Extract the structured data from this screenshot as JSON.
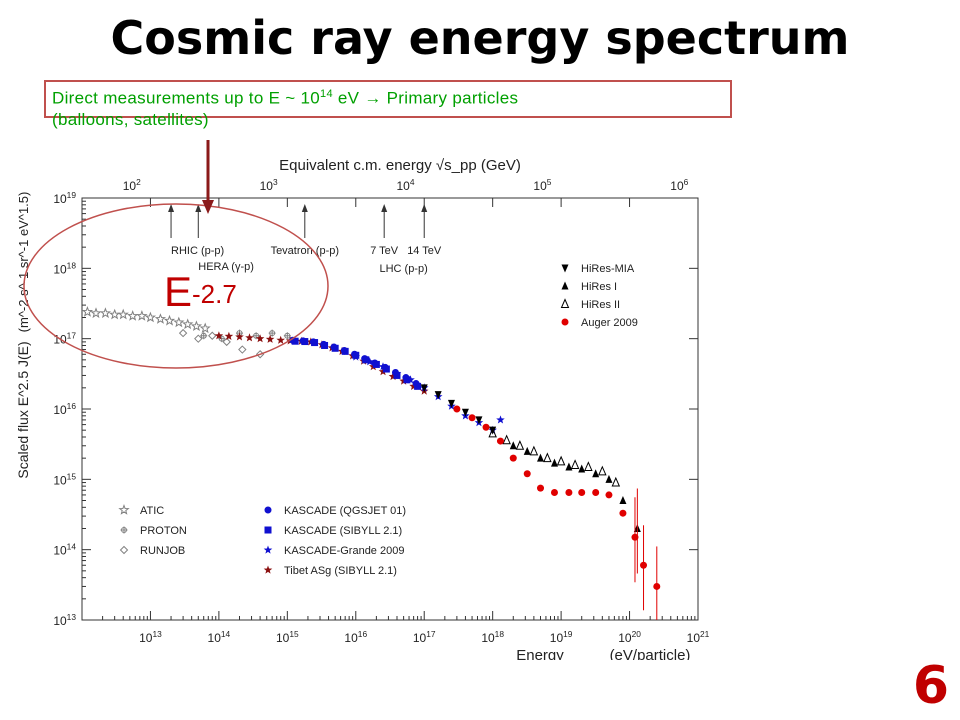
{
  "title": "Cosmic ray energy spectrum",
  "page_number": "6",
  "callout": {
    "line1_prefix": "Direct measurements up to E ~ 10",
    "line1_exp": "14",
    "line1_suffix": " eV  → Primary particles",
    "line2": "(balloons, satellites)"
  },
  "annotation": {
    "base": "E",
    "exponent": "-2.7"
  },
  "colors": {
    "title": "#000000",
    "callout_text": "#00a000",
    "callout_border": "#c0504d",
    "annotation": "#c00000",
    "arrow": "#8b1a1a"
  },
  "chart_data": {
    "type": "scatter",
    "xlabel": "Energy",
    "xunit": "(eV/particle)",
    "ylabel": "Scaled flux  E^2.5 J(E)",
    "yunit": "(m^-2 s^-1 sr^-1 eV^1.5)",
    "x_scale": "log",
    "y_scale": "log",
    "xlim": [
      1000000000000.0,
      1e+21
    ],
    "ylim": [
      10000000000000.0,
      1e+19
    ],
    "x_ticks": [
      "10^13",
      "10^14",
      "10^15",
      "10^16",
      "10^17",
      "10^18",
      "10^19",
      "10^20",
      "10^21"
    ],
    "y_ticks": [
      "10^13",
      "10^14",
      "10^15",
      "10^16",
      "10^17",
      "10^18",
      "10^19"
    ],
    "top_axis": {
      "label": "Equivalent c.m. energy √s_pp  (GeV)",
      "ticks": [
        "10^2",
        "10^3",
        "10^4",
        "10^5",
        "10^6"
      ]
    },
    "accelerator_markers": [
      {
        "label": "RHIC (p-p)",
        "energy_ev": 20000000000000.0
      },
      {
        "label": "HERA (γ-p)",
        "energy_ev": 50000000000000.0
      },
      {
        "label": "Tevatron (p-p)",
        "energy_ev": 1800000000000000.0
      },
      {
        "label": "7 TeV",
        "energy_ev": 2.6e+16
      },
      {
        "label": "14 TeV",
        "energy_ev": 1e+17
      }
    ],
    "lhc_label": "LHC (p-p)",
    "legend_left": [
      {
        "name": "ATIC",
        "marker": "star-open",
        "color": "#808080"
      },
      {
        "name": "PROTON",
        "marker": "cross-open",
        "color": "#808080"
      },
      {
        "name": "RUNJOB",
        "marker": "diamond-open",
        "color": "#808080"
      }
    ],
    "legend_mid": [
      {
        "name": "KASCADE (QGSJET 01)",
        "marker": "circle",
        "color": "#1010d0"
      },
      {
        "name": "KASCADE (SIBYLL 2.1)",
        "marker": "square",
        "color": "#1010d0"
      },
      {
        "name": "KASCADE-Grande 2009",
        "marker": "star",
        "color": "#1010d0"
      },
      {
        "name": "Tibet ASg (SIBYLL 2.1)",
        "marker": "star",
        "color": "#8b1010"
      }
    ],
    "legend_right": [
      {
        "name": "HiRes-MIA",
        "marker": "triangle-down",
        "color": "#000000"
      },
      {
        "name": "HiRes I",
        "marker": "triangle-up",
        "color": "#000000"
      },
      {
        "name": "HiRes II",
        "marker": "triangle-open",
        "color": "#000000"
      },
      {
        "name": "Auger 2009",
        "marker": "circle",
        "color": "#e00000"
      }
    ],
    "series": [
      {
        "name": "ATIC",
        "marker": "star-open",
        "color": "#808080",
        "points": [
          [
            1200000000000.0,
            2.4e+17
          ],
          [
            1600000000000.0,
            2.3e+17
          ],
          [
            2200000000000.0,
            2.3e+17
          ],
          [
            3000000000000.0,
            2.2e+17
          ],
          [
            4000000000000.0,
            2.2e+17
          ],
          [
            5500000000000.0,
            2.1e+17
          ],
          [
            7500000000000.0,
            2.1e+17
          ],
          [
            10000000000000.0,
            2e+17
          ],
          [
            14000000000000.0,
            1.9e+17
          ],
          [
            19000000000000.0,
            1.8e+17
          ],
          [
            26000000000000.0,
            1.7e+17
          ],
          [
            35000000000000.0,
            1.6e+17
          ],
          [
            47000000000000.0,
            1.5e+17
          ],
          [
            63000000000000.0,
            1.4e+17
          ]
        ]
      },
      {
        "name": "PROTON",
        "marker": "cross-open",
        "color": "#808080",
        "points": [
          [
            60000000000000.0,
            1.1e+17
          ],
          [
            110000000000000.0,
            1e+17
          ],
          [
            200000000000000.0,
            1.2e+17
          ],
          [
            350000000000000.0,
            1.1e+17
          ],
          [
            600000000000000.0,
            1.2e+17
          ],
          [
            1000000000000000.0,
            1.1e+17
          ]
        ]
      },
      {
        "name": "RUNJOB",
        "marker": "diamond-open",
        "color": "#808080",
        "points": [
          [
            30000000000000.0,
            1.2e+17
          ],
          [
            50000000000000.0,
            1e+17
          ],
          [
            80000000000000.0,
            1.1e+17
          ],
          [
            130000000000000.0,
            9e+16
          ],
          [
            220000000000000.0,
            7e+16
          ],
          [
            400000000000000.0,
            6e+16
          ]
        ]
      },
      {
        "name": "Tibet ASg (SIBYLL 2.1)",
        "marker": "star",
        "color": "#8b1010",
        "points": [
          [
            100000000000000.0,
            1.1e+17
          ],
          [
            140000000000000.0,
            1.08e+17
          ],
          [
            200000000000000.0,
            1.06e+17
          ],
          [
            280000000000000.0,
            1.03e+17
          ],
          [
            400000000000000.0,
            1e+17
          ],
          [
            560000000000000.0,
            9.8e+16
          ],
          [
            800000000000000.0,
            9.5e+16
          ],
          [
            1100000000000000.0,
            9.3e+16
          ],
          [
            1600000000000000.0,
            9.2e+16
          ],
          [
            2200000000000000.0,
            9e+16
          ],
          [
            3200000000000000.0,
            8.2e+16
          ],
          [
            4500000000000000.0,
            7.4e+16
          ],
          [
            6300000000000000.0,
            6.6e+16
          ],
          [
            9000000000000000.0,
            5.7e+16
          ],
          [
            1.3e+16,
            4.8e+16
          ],
          [
            1.8e+16,
            4e+16
          ],
          [
            2.5e+16,
            3.4e+16
          ],
          [
            3.5e+16,
            2.9e+16
          ],
          [
            5e+16,
            2.5e+16
          ],
          [
            7e+16,
            2.1e+16
          ],
          [
            1e+17,
            1.8e+16
          ]
        ]
      },
      {
        "name": "KASCADE (SIBYLL 2.1)",
        "marker": "square",
        "color": "#1010d0",
        "points": [
          [
            1300000000000000.0,
            9.2e+16
          ],
          [
            1800000000000000.0,
            9.1e+16
          ],
          [
            2500000000000000.0,
            8.8e+16
          ],
          [
            3500000000000000.0,
            8e+16
          ],
          [
            5000000000000000.0,
            7.3e+16
          ],
          [
            7000000000000000.0,
            6.6e+16
          ],
          [
            1e+16,
            5.8e+16
          ],
          [
            1.4e+16,
            5e+16
          ],
          [
            2e+16,
            4.3e+16
          ],
          [
            2.8e+16,
            3.7e+16
          ],
          [
            4e+16,
            3e+16
          ],
          [
            5.6e+16,
            2.6e+16
          ],
          [
            8e+16,
            2.1e+16
          ]
        ]
      },
      {
        "name": "KASCADE (QGSJET 01)",
        "marker": "circle",
        "color": "#1010d0",
        "points": [
          [
            1200000000000000.0,
            9.5e+16
          ],
          [
            1700000000000000.0,
            9.3e+16
          ],
          [
            2400000000000000.0,
            9e+16
          ],
          [
            3400000000000000.0,
            8.3e+16
          ],
          [
            4800000000000000.0,
            7.6e+16
          ],
          [
            6800000000000000.0,
            6.8e+16
          ],
          [
            9600000000000000.0,
            6e+16
          ],
          [
            1.35e+16,
            5.2e+16
          ],
          [
            1.9e+16,
            4.5e+16
          ],
          [
            2.7e+16,
            3.9e+16
          ],
          [
            3.8e+16,
            3.3e+16
          ],
          [
            5.4e+16,
            2.8e+16
          ],
          [
            7.6e+16,
            2.3e+16
          ]
        ]
      },
      {
        "name": "KASCADE-Grande 2009",
        "marker": "star",
        "color": "#1010d0",
        "points": [
          [
            1e+16,
            5.5e+16
          ],
          [
            1.6e+16,
            4.7e+16
          ],
          [
            2.5e+16,
            4e+16
          ],
          [
            4e+16,
            3.2e+16
          ],
          [
            6.3e+16,
            2.6e+16
          ],
          [
            1e+17,
            2e+16
          ],
          [
            1.6e+17,
            1.5e+16
          ],
          [
            2.5e+17,
            1.1e+16
          ],
          [
            4e+17,
            8000000000000000.0
          ],
          [
            6.3e+17,
            6400000000000000.0
          ],
          [
            1e+18,
            5000000000000000.0
          ],
          [
            1.3e+18,
            7000000000000000.0
          ]
        ]
      },
      {
        "name": "HiRes-MIA",
        "marker": "triangle-down",
        "color": "#000000",
        "points": [
          [
            1e+17,
            2e+16
          ],
          [
            1.6e+17,
            1.6e+16
          ],
          [
            2.5e+17,
            1.2e+16
          ],
          [
            4e+17,
            9000000000000000.0
          ],
          [
            6.3e+17,
            7000000000000000.0
          ],
          [
            1e+18,
            5000000000000000.0
          ]
        ]
      },
      {
        "name": "HiRes I",
        "marker": "triangle-up",
        "color": "#000000",
        "points": [
          [
            2e+18,
            3000000000000000.0
          ],
          [
            3.2e+18,
            2500000000000000.0
          ],
          [
            5e+18,
            2000000000000000.0
          ],
          [
            8e+18,
            1700000000000000.0
          ],
          [
            1.3e+19,
            1500000000000000.0
          ],
          [
            2e+19,
            1400000000000000.0
          ],
          [
            3.2e+19,
            1200000000000000.0
          ],
          [
            5e+19,
            1000000000000000.0
          ],
          [
            8e+19,
            500000000000000.0
          ],
          [
            1.3e+20,
            200000000000000.0
          ]
        ]
      },
      {
        "name": "HiRes II",
        "marker": "triangle-open",
        "color": "#000000",
        "points": [
          [
            1e+18,
            4500000000000000.0
          ],
          [
            1.6e+18,
            3600000000000000.0
          ],
          [
            2.5e+18,
            3000000000000000.0
          ],
          [
            4e+18,
            2500000000000000.0
          ],
          [
            6.3e+18,
            2000000000000000.0
          ],
          [
            1e+19,
            1800000000000000.0
          ],
          [
            1.6e+19,
            1600000000000000.0
          ],
          [
            2.5e+19,
            1500000000000000.0
          ],
          [
            4e+19,
            1300000000000000.0
          ],
          [
            6.3e+19,
            900000000000000.0
          ]
        ]
      },
      {
        "name": "Auger 2009",
        "marker": "circle",
        "color": "#e00000",
        "points": [
          [
            3e+17,
            1e+16
          ],
          [
            5e+17,
            7500000000000000.0
          ],
          [
            8e+17,
            5500000000000000.0
          ],
          [
            1.3e+18,
            3500000000000000.0
          ],
          [
            2e+18,
            2000000000000000.0
          ],
          [
            3.2e+18,
            1200000000000000.0
          ],
          [
            5e+18,
            750000000000000.0
          ],
          [
            8e+18,
            650000000000000.0
          ],
          [
            1.3e+19,
            650000000000000.0
          ],
          [
            2e+19,
            650000000000000.0
          ],
          [
            3.2e+19,
            650000000000000.0
          ],
          [
            5e+19,
            600000000000000.0
          ],
          [
            8e+19,
            330000000000000.0
          ],
          [
            1.2e+20,
            150000000000000.0
          ],
          [
            1.6e+20,
            60000000000000.0
          ],
          [
            2.5e+20,
            30000000000000.0
          ]
        ]
      }
    ]
  }
}
